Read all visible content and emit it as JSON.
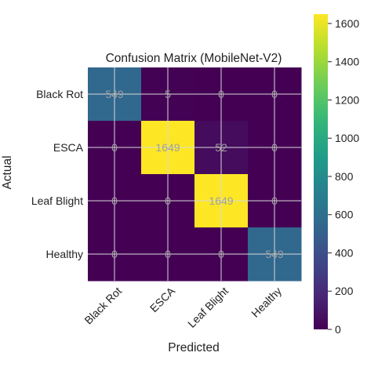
{
  "chart_data": {
    "type": "heatmap",
    "title": "Confusion Matrix (MobileNet-V2)",
    "xlabel": "Predicted",
    "ylabel": "Actual",
    "x_categories": [
      "Black Rot",
      "ESCA",
      "Leaf Blight",
      "Healthy"
    ],
    "y_categories": [
      "Black Rot",
      "ESCA",
      "Leaf Blight",
      "Healthy"
    ],
    "values": [
      [
        549,
        5,
        0,
        0
      ],
      [
        0,
        1649,
        52,
        0
      ],
      [
        0,
        0,
        1649,
        0
      ],
      [
        0,
        0,
        0,
        549
      ]
    ],
    "colormap": "viridis",
    "colorbar_range": [
      0,
      1649
    ],
    "colorbar_ticks": [
      0,
      200,
      400,
      600,
      800,
      1000,
      1200,
      1400,
      1600
    ],
    "grid": true,
    "annotation_color": "#a0a0a0"
  }
}
